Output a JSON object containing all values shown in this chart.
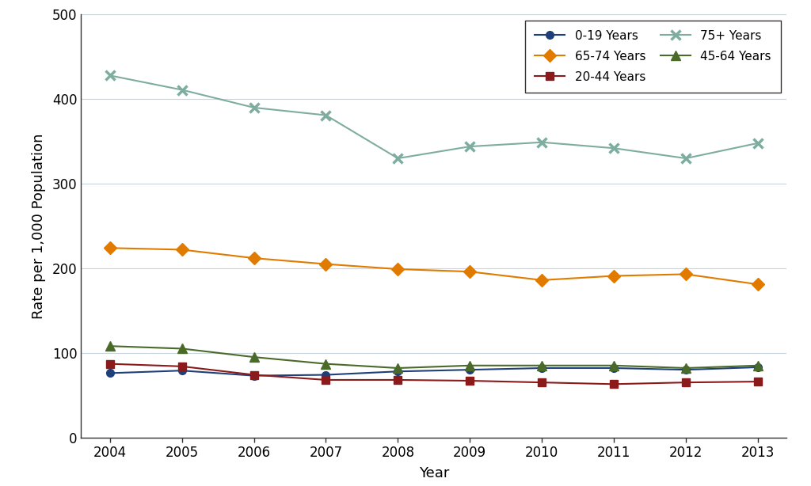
{
  "years": [
    2004,
    2005,
    2006,
    2007,
    2008,
    2009,
    2010,
    2011,
    2012,
    2013
  ],
  "series": {
    "0-19 Years": {
      "values": [
        76,
        79,
        73,
        74,
        78,
        80,
        82,
        82,
        80,
        83
      ],
      "color": "#1f3f7a",
      "marker": "o",
      "markersize": 7,
      "linewidth": 1.5
    },
    "20-44 Years": {
      "values": [
        87,
        84,
        74,
        68,
        68,
        67,
        65,
        63,
        65,
        66
      ],
      "color": "#8b1a1a",
      "marker": "s",
      "markersize": 7,
      "linewidth": 1.5
    },
    "45-64 Years": {
      "values": [
        108,
        105,
        95,
        87,
        82,
        85,
        85,
        85,
        82,
        85
      ],
      "color": "#4a6a2a",
      "marker": "^",
      "markersize": 8,
      "linewidth": 1.5
    },
    "65-74 Years": {
      "values": [
        224,
        222,
        212,
        205,
        199,
        196,
        186,
        191,
        193,
        181
      ],
      "color": "#e07b00",
      "marker": "D",
      "markersize": 8,
      "linewidth": 1.5
    },
    "75+ Years": {
      "values": [
        428,
        411,
        390,
        381,
        330,
        344,
        349,
        342,
        330,
        348
      ],
      "color": "#7eada0",
      "marker": "x",
      "markersize": 9,
      "linewidth": 1.5,
      "markeredgewidth": 2.5
    }
  },
  "xlabel": "Year",
  "ylabel": "Rate per 1,000 Population",
  "ylim": [
    0,
    500
  ],
  "yticks": [
    0,
    100,
    200,
    300,
    400,
    500
  ],
  "xlim": [
    2003.6,
    2013.4
  ],
  "xticks": [
    2004,
    2005,
    2006,
    2007,
    2008,
    2009,
    2010,
    2011,
    2012,
    2013
  ],
  "background_color": "#ffffff",
  "grid_color": "#c8d4dc",
  "legend_order": [
    "0-19 Years",
    "65-74 Years",
    "20-44 Years",
    "75+ Years",
    "45-64 Years"
  ],
  "legend_ncol": 2,
  "legend_loc": "upper right",
  "title_fontsize": 12,
  "axis_fontsize": 13,
  "tick_fontsize": 12,
  "legend_fontsize": 11
}
